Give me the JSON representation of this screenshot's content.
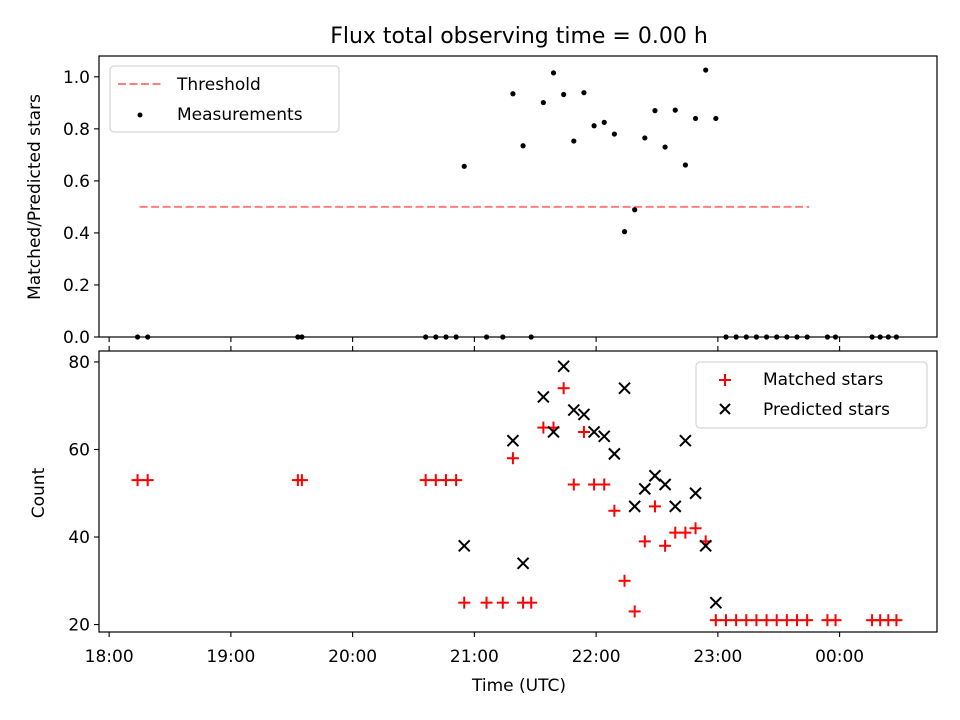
{
  "title": "Flux total observing time = 0.00 h",
  "chart_data": [
    {
      "type": "scatter",
      "ylabel": "Matched/Predicted stars",
      "ylim": [
        0,
        1.08
      ],
      "yticks": [
        "0.0",
        "0.2",
        "0.4",
        "0.6",
        "0.8",
        "1.0"
      ],
      "legend_position": "top-left",
      "threshold": {
        "name": "Threshold",
        "value": 0.5,
        "x_range": [
          "18:15",
          "23:45"
        ],
        "color": "#ff7f7f",
        "style": "dashed"
      },
      "series": [
        {
          "name": "Measurements",
          "marker": "dot",
          "color": "#000000",
          "points": [
            [
              "18:14",
              0
            ],
            [
              "18:19",
              0
            ],
            [
              "19:33",
              0
            ],
            [
              "19:35",
              0
            ],
            [
              "20:36",
              0
            ],
            [
              "20:41",
              0
            ],
            [
              "20:46",
              0
            ],
            [
              "20:51",
              0
            ],
            [
              "20:55",
              0.656
            ],
            [
              "21:06",
              0
            ],
            [
              "21:14",
              0
            ],
            [
              "21:19",
              0.935
            ],
            [
              "21:24",
              0.735
            ],
            [
              "21:28",
              0
            ],
            [
              "21:34",
              0.901
            ],
            [
              "21:39",
              1.015
            ],
            [
              "21:44",
              0.932
            ],
            [
              "21:49",
              0.753
            ],
            [
              "21:54",
              0.939
            ],
            [
              "21:59",
              0.812
            ],
            [
              "22:04",
              0.825
            ],
            [
              "22:09",
              0.78
            ],
            [
              "22:14",
              0.405
            ],
            [
              "22:19",
              0.489
            ],
            [
              "22:24",
              0.765
            ],
            [
              "22:29",
              0.87
            ],
            [
              "22:34",
              0.73
            ],
            [
              "22:39",
              0.872
            ],
            [
              "22:44",
              0.661
            ],
            [
              "22:49",
              0.84
            ],
            [
              "22:54",
              1.026
            ],
            [
              "22:59",
              0.84
            ],
            [
              "23:04",
              0
            ],
            [
              "23:09",
              0
            ],
            [
              "23:14",
              0
            ],
            [
              "23:19",
              0
            ],
            [
              "23:24",
              0
            ],
            [
              "23:29",
              0
            ],
            [
              "23:34",
              0
            ],
            [
              "23:39",
              0
            ],
            [
              "23:44",
              0
            ],
            [
              "23:54",
              0
            ],
            [
              "23:58",
              0
            ],
            [
              "00:16",
              0
            ],
            [
              "00:20",
              0
            ],
            [
              "00:24",
              0
            ],
            [
              "00:28",
              0
            ]
          ]
        }
      ]
    },
    {
      "type": "scatter",
      "ylabel": "Count",
      "xlabel": "Time (UTC)",
      "xlim": [
        "17:55",
        "00:48"
      ],
      "ylim": [
        18.3,
        82.5
      ],
      "yticks": [
        "20",
        "40",
        "60",
        "80"
      ],
      "xticks": [
        "18:00",
        "19:00",
        "20:00",
        "21:00",
        "22:00",
        "23:00",
        "00:00"
      ],
      "legend_position": "top-right",
      "series": [
        {
          "name": "Matched stars",
          "marker": "plus",
          "color": "#ff0000",
          "points": [
            [
              "18:14",
              53
            ],
            [
              "18:19",
              53
            ],
            [
              "19:33",
              53
            ],
            [
              "19:35",
              53
            ],
            [
              "20:36",
              53
            ],
            [
              "20:41",
              53
            ],
            [
              "20:46",
              53
            ],
            [
              "20:51",
              53
            ],
            [
              "20:55",
              25
            ],
            [
              "21:06",
              25
            ],
            [
              "21:14",
              25
            ],
            [
              "21:19",
              58
            ],
            [
              "21:24",
              25
            ],
            [
              "21:28",
              25
            ],
            [
              "21:34",
              65
            ],
            [
              "21:39",
              65
            ],
            [
              "21:44",
              74
            ],
            [
              "21:49",
              52
            ],
            [
              "21:54",
              64
            ],
            [
              "21:59",
              52
            ],
            [
              "22:04",
              52
            ],
            [
              "22:09",
              46
            ],
            [
              "22:14",
              30
            ],
            [
              "22:19",
              23
            ],
            [
              "22:24",
              39
            ],
            [
              "22:29",
              47
            ],
            [
              "22:34",
              38
            ],
            [
              "22:39",
              41
            ],
            [
              "22:44",
              41
            ],
            [
              "22:49",
              42
            ],
            [
              "22:54",
              39
            ],
            [
              "22:59",
              21
            ],
            [
              "23:04",
              21
            ],
            [
              "23:09",
              21
            ],
            [
              "23:14",
              21
            ],
            [
              "23:19",
              21
            ],
            [
              "23:24",
              21
            ],
            [
              "23:29",
              21
            ],
            [
              "23:34",
              21
            ],
            [
              "23:39",
              21
            ],
            [
              "23:44",
              21
            ],
            [
              "23:54",
              21
            ],
            [
              "23:58",
              21
            ],
            [
              "00:16",
              21
            ],
            [
              "00:20",
              21
            ],
            [
              "00:24",
              21
            ],
            [
              "00:28",
              21
            ]
          ]
        },
        {
          "name": "Predicted stars",
          "marker": "x",
          "color": "#000000",
          "points": [
            [
              "20:55",
              38
            ],
            [
              "21:19",
              62
            ],
            [
              "21:24",
              34
            ],
            [
              "21:34",
              72
            ],
            [
              "21:39",
              64
            ],
            [
              "21:44",
              79
            ],
            [
              "21:49",
              69
            ],
            [
              "21:54",
              68
            ],
            [
              "21:59",
              64
            ],
            [
              "22:04",
              63
            ],
            [
              "22:09",
              59
            ],
            [
              "22:14",
              74
            ],
            [
              "22:19",
              47
            ],
            [
              "22:24",
              51
            ],
            [
              "22:29",
              54
            ],
            [
              "22:34",
              52
            ],
            [
              "22:39",
              47
            ],
            [
              "22:44",
              62
            ],
            [
              "22:49",
              50
            ],
            [
              "22:54",
              38
            ],
            [
              "22:59",
              25
            ]
          ]
        }
      ]
    }
  ]
}
